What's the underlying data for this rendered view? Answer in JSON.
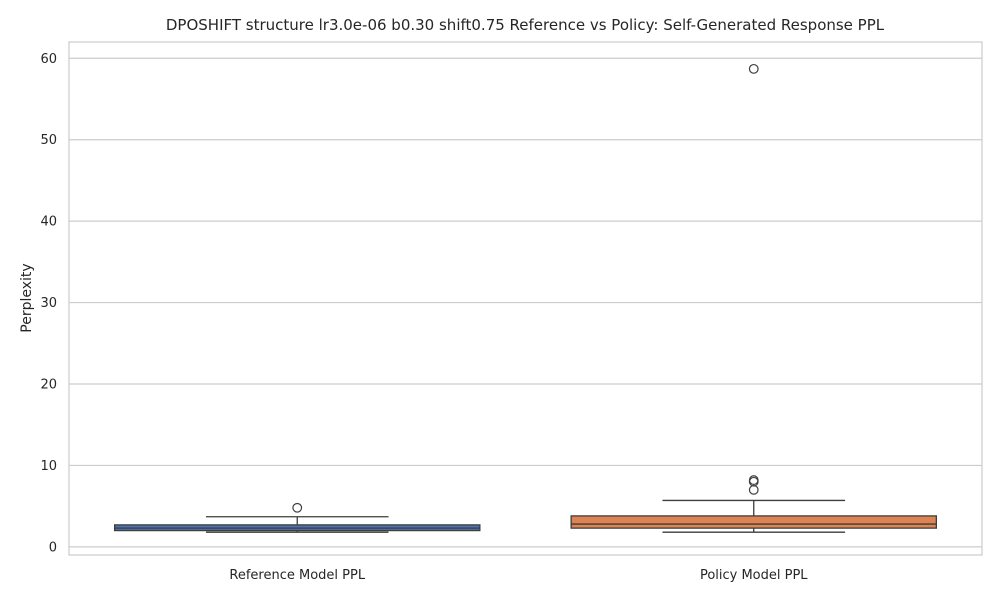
{
  "chart_data": {
    "type": "box",
    "title": "DPOSHIFT structure lr3.0e-06 b0.30 shift0.75 Reference vs Policy: Self-Generated Response PPL",
    "xlabel": "",
    "ylabel": "Perplexity",
    "ylim": [
      -1,
      62
    ],
    "yticks": [
      0,
      10,
      20,
      30,
      40,
      50,
      60
    ],
    "grid": "horizontal",
    "categories": [
      "Reference Model PPL",
      "Policy Model PPL"
    ],
    "series": [
      {
        "category": "Reference Model PPL",
        "whisker_low": 1.8,
        "q1": 2.0,
        "median": 2.3,
        "q3": 2.7,
        "whisker_high": 3.7,
        "outliers": [
          4.8
        ],
        "color": "#4c72b0"
      },
      {
        "category": "Policy Model PPL",
        "whisker_low": 1.8,
        "q1": 2.3,
        "median": 2.8,
        "q3": 3.8,
        "whisker_high": 5.7,
        "outliers": [
          7.0,
          8.0,
          8.2,
          58.7
        ],
        "color": "#dd8452"
      }
    ]
  }
}
